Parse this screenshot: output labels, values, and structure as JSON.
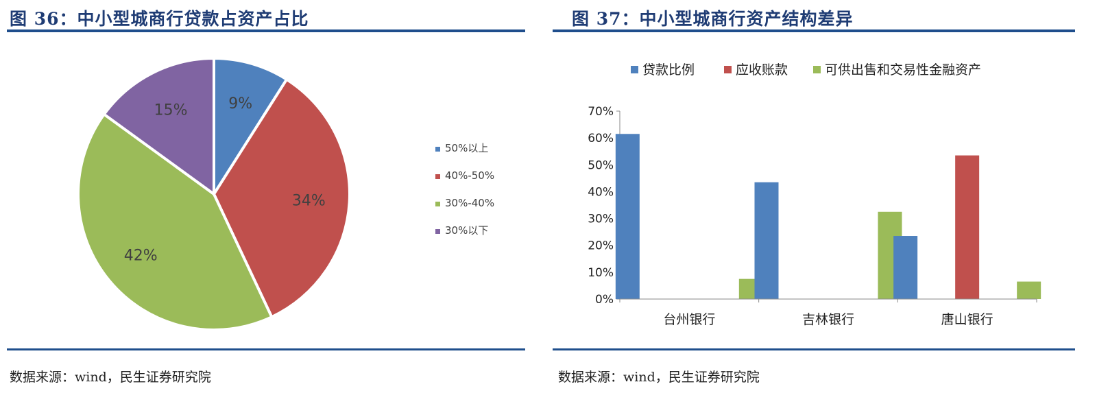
{
  "figures": [
    {
      "title": "图 36：中小型城商行贷款占资产占比",
      "source": "数据来源：wind，民生证券研究院"
    },
    {
      "title": "图 37：中小型城商行资产结构差异",
      "source": "数据来源：wind，民生证券研究院"
    }
  ],
  "colors": {
    "blue": "#4f81bd",
    "red": "#c0504d",
    "green": "#9bbb59",
    "purple": "#8064a2",
    "rule": "#1f4e8c",
    "title": "#1f3c74"
  },
  "chart_data": [
    {
      "type": "pie",
      "slices": [
        {
          "label": "50%以上",
          "value": 9,
          "display": "9%",
          "color": "#4f81bd"
        },
        {
          "label": "40%-50%",
          "value": 34,
          "display": "34%",
          "color": "#c0504d"
        },
        {
          "label": "30%-40%",
          "value": 42,
          "display": "42%",
          "color": "#9bbb59"
        },
        {
          "label": "30%以下",
          "value": 15,
          "display": "15%",
          "color": "#8064a2"
        }
      ],
      "legend_position": "right"
    },
    {
      "type": "bar",
      "categories": [
        "台州银行",
        "吉林银行",
        "唐山银行"
      ],
      "series": [
        {
          "name": "贷款比例",
          "values": [
            61.5,
            43.5,
            23.5
          ],
          "color": "#4f81bd"
        },
        {
          "name": "应收账款",
          "values": [
            0,
            0,
            53.5
          ],
          "color": "#c0504d"
        },
        {
          "name": "可供出售和交易性金融资产",
          "values": [
            7.5,
            32.5,
            6.5
          ],
          "color": "#9bbb59"
        }
      ],
      "ylim": [
        0,
        70
      ],
      "yticks": [
        "0%",
        "10%",
        "20%",
        "30%",
        "40%",
        "50%",
        "60%",
        "70%"
      ],
      "legend_position": "top"
    }
  ]
}
